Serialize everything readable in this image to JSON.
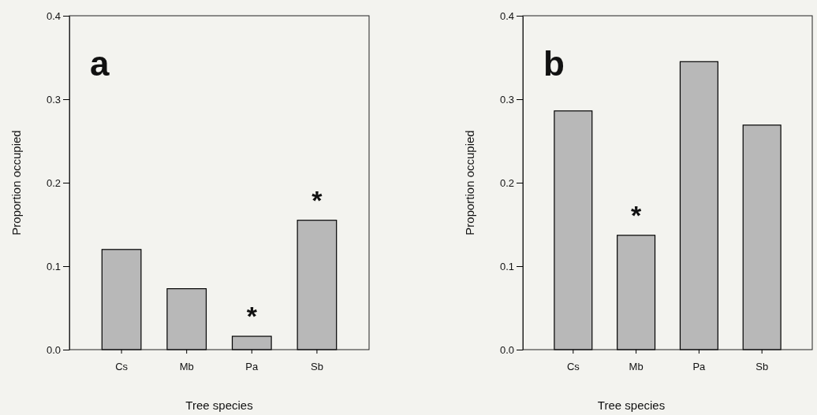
{
  "chart_data": [
    {
      "type": "bar",
      "title": "a",
      "xlabel": "Tree species",
      "ylabel": "Proportion occupied",
      "categories": [
        "Cs",
        "Mb",
        "Pa",
        "Sb"
      ],
      "values": [
        0.12,
        0.073,
        0.016,
        0.155
      ],
      "color": "#b8b8b8",
      "ylim": [
        0,
        0.4
      ],
      "yticks": [
        {
          "value": 0,
          "label": "0.0"
        },
        0.1,
        0.2,
        0.3,
        0.4
      ],
      "grid": false,
      "annotations": [
        {
          "text": "*",
          "x": "Pa",
          "y": 0.016
        },
        {
          "text": "*",
          "x": "Sb",
          "y": 0.155
        }
      ]
    },
    {
      "type": "bar",
      "title": "b",
      "xlabel": "Tree species",
      "ylabel": "Proportion occupied",
      "categories": [
        "Cs",
        "Mb",
        "Pa",
        "Sb"
      ],
      "values": [
        0.286,
        0.137,
        0.345,
        0.269
      ],
      "color": "#b8b8b8",
      "ylim": [
        0,
        0.4
      ],
      "yticks": [
        {
          "value": 0,
          "label": "0.0"
        },
        0.1,
        0.2,
        0.3,
        0.4
      ],
      "grid": false,
      "annotations": [
        {
          "text": "*",
          "x": "Mb",
          "y": 0.137
        }
      ]
    }
  ]
}
